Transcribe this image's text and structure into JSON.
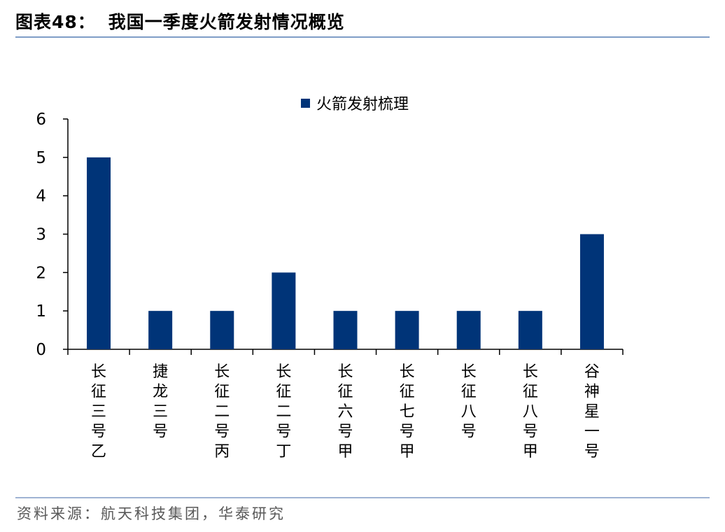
{
  "header": {
    "figure_number": "图表48：",
    "title": "我国一季度火箭发射情况概览"
  },
  "footer": {
    "source": "资料来源：航天科技集团，华泰研究"
  },
  "colors": {
    "bar": "#003478",
    "rule": "#7f9dc7"
  },
  "chart_data": {
    "type": "bar",
    "categories": [
      "长征三号乙",
      "捷龙三号",
      "长征二号丙",
      "长征二号丁",
      "长征六号甲",
      "长征七号甲",
      "长征八号",
      "长征八号甲",
      "谷神星一号"
    ],
    "series": [
      {
        "name": "火箭发射梳理",
        "values": [
          5,
          1,
          1,
          2,
          1,
          1,
          1,
          1,
          3
        ]
      }
    ],
    "ylim": [
      0,
      6
    ],
    "yticks": [
      0,
      1,
      2,
      3,
      4,
      5,
      6
    ],
    "grid": false,
    "legend": "top-center"
  }
}
